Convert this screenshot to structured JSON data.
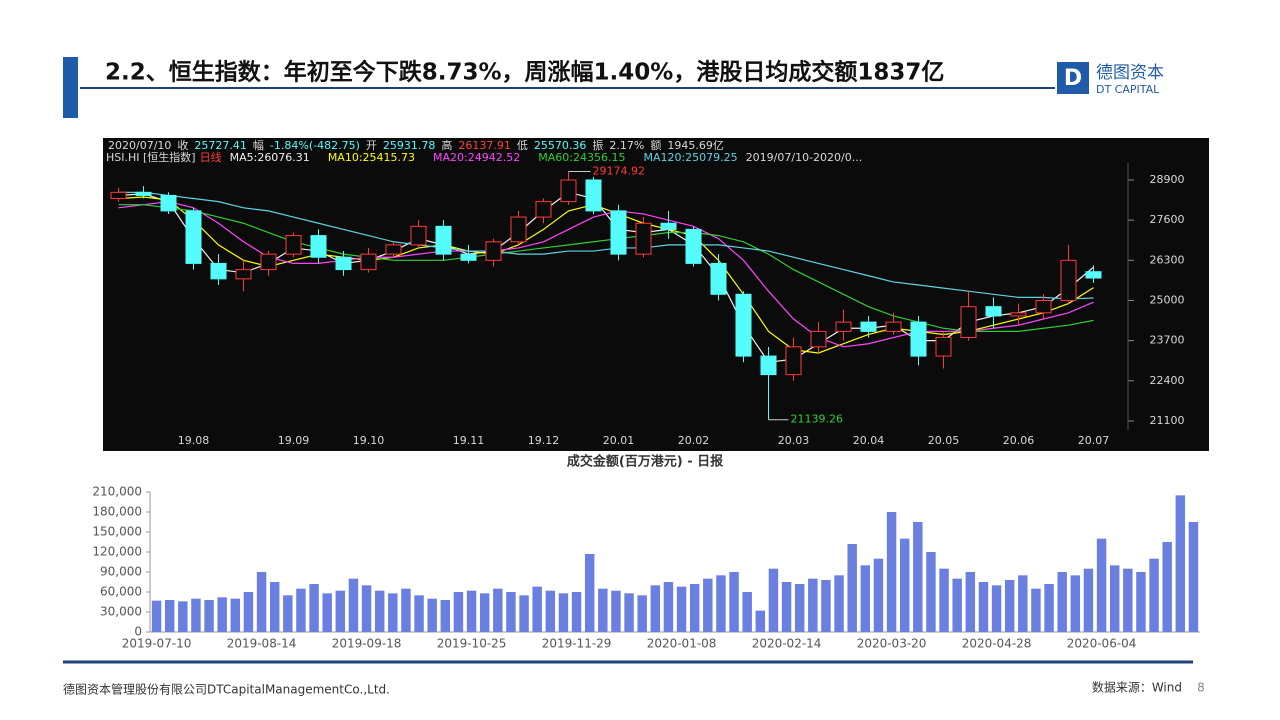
{
  "header": {
    "title": "2.2、恒生指数：年初至今下跌8.73%，周涨幅1.40%，港股日均成交额1837亿",
    "logo_cn": "德图资本",
    "logo_en": "DT CAPITAL"
  },
  "footer": {
    "company": "德图资本管理股份有限公司DTCapitalManagementCo.,Ltd.",
    "source": "数据来源：Wind",
    "page": 8
  },
  "chart_data": [
    {
      "type": "candlestick",
      "info": [
        {
          "text": "2020/07/10",
          "color": "#d8d8d8"
        },
        {
          "text": "收",
          "color": "#d8d8d8"
        },
        {
          "text": "25727.41",
          "color": "#54fcfc"
        },
        {
          "text": "幅",
          "color": "#d8d8d8"
        },
        {
          "text": "-1.84%(-482.75)",
          "color": "#54fcfc"
        },
        {
          "text": "开",
          "color": "#d8d8d8"
        },
        {
          "text": "25931.78",
          "color": "#54fcfc"
        },
        {
          "text": "高",
          "color": "#d8d8d8"
        },
        {
          "text": "26137.91",
          "color": "#ff4040"
        },
        {
          "text": "低",
          "color": "#d8d8d8"
        },
        {
          "text": "25570.36",
          "color": "#54fcfc"
        },
        {
          "text": "振",
          "color": "#d8d8d8"
        },
        {
          "text": "2.17%",
          "color": "#d8d8d8"
        },
        {
          "text": "额",
          "color": "#d8d8d8"
        },
        {
          "text": "1945.69亿",
          "color": "#d8d8d8"
        }
      ],
      "symbol": "HSI.HI [恒生指数]",
      "period": "日线",
      "range": "2019/07/10-2020/0...",
      "categories": [
        null,
        null,
        null,
        "19.08",
        null,
        null,
        null,
        "19.09",
        null,
        null,
        "19.10",
        null,
        null,
        null,
        "19.11",
        null,
        null,
        "19.12",
        null,
        null,
        "20.01",
        null,
        null,
        "20.02",
        null,
        null,
        null,
        "20.03",
        null,
        null,
        "20.04",
        null,
        null,
        "20.05",
        null,
        null,
        "20.06",
        null,
        null,
        "20.07"
      ],
      "open": [
        28300,
        28500,
        28400,
        27900,
        26200,
        25700,
        26000,
        26500,
        27100,
        26400,
        26000,
        26500,
        26800,
        27400,
        26500,
        26300,
        26900,
        27700,
        28200,
        28900,
        27900,
        26500,
        27500,
        27300,
        26200,
        25200,
        23200,
        22600,
        23500,
        24000,
        24300,
        24000,
        24300,
        23200,
        23800,
        24800,
        24500,
        24600,
        25000,
        25931.78
      ],
      "high": [
        28650,
        28700,
        28500,
        28000,
        26500,
        26300,
        26600,
        27200,
        27300,
        26600,
        26700,
        26900,
        27600,
        27600,
        26800,
        27000,
        27900,
        28300,
        29174.92,
        29000,
        28100,
        27700,
        27900,
        27400,
        26500,
        25300,
        23500,
        23800,
        24300,
        24700,
        24500,
        24600,
        24500,
        24000,
        25300,
        25100,
        24900,
        25200,
        26800,
        26137.91
      ],
      "low": [
        28200,
        28300,
        27800,
        26000,
        25500,
        25300,
        25800,
        26400,
        26200,
        25800,
        25900,
        26400,
        26700,
        26300,
        26200,
        26100,
        26800,
        27500,
        28100,
        27800,
        26300,
        26400,
        27000,
        26100,
        25000,
        23000,
        21139.26,
        22400,
        23300,
        23700,
        23800,
        23900,
        22900,
        22800,
        23700,
        24100,
        24200,
        24400,
        24900,
        25570.36
      ],
      "close": [
        28500,
        28400,
        27900,
        26200,
        25700,
        26000,
        26500,
        27100,
        26400,
        26000,
        26500,
        26800,
        27400,
        26500,
        26300,
        26900,
        27700,
        28200,
        28900,
        27900,
        26500,
        27500,
        27300,
        26200,
        25200,
        23200,
        22600,
        23500,
        24000,
        24300,
        24000,
        24300,
        23200,
        23800,
        24800,
        24500,
        24600,
        25000,
        26300,
        25727.41
      ],
      "up_color": "#ff3a3a",
      "down_color": "#54fcfc",
      "series": [
        {
          "name": "MA5:26076.31",
          "color": "#f0f0f0",
          "values": [
            28400,
            28450,
            28200,
            27000,
            26000,
            25900,
            26200,
            26700,
            26600,
            26200,
            26300,
            26600,
            27000,
            26800,
            26500,
            26600,
            27200,
            27900,
            28500,
            28300,
            27300,
            27200,
            27300,
            26800,
            25800,
            24200,
            23000,
            23100,
            23600,
            24100,
            24100,
            24200,
            23700,
            23700,
            24300,
            24500,
            24600,
            24800,
            25400,
            26076
          ]
        },
        {
          "name": "MA10:25415.73",
          "color": "#ffff00",
          "values": [
            28300,
            28350,
            28250,
            27600,
            26800,
            26300,
            26100,
            26300,
            26500,
            26400,
            26300,
            26400,
            26700,
            26800,
            26600,
            26500,
            26800,
            27300,
            27900,
            28100,
            27800,
            27500,
            27300,
            27100,
            26300,
            25200,
            24000,
            23400,
            23300,
            23600,
            23900,
            24100,
            24000,
            23900,
            24000,
            24200,
            24400,
            24600,
            24900,
            25416
          ]
        },
        {
          "name": "MA20:24942.52",
          "color": "#ff44ff",
          "values": [
            28000,
            28100,
            28200,
            28000,
            27500,
            26900,
            26400,
            26200,
            26200,
            26300,
            26400,
            26400,
            26500,
            26600,
            26600,
            26600,
            26700,
            26900,
            27300,
            27700,
            27900,
            27800,
            27600,
            27400,
            27000,
            26300,
            25300,
            24400,
            23800,
            23500,
            23600,
            23800,
            24000,
            24000,
            24000,
            24100,
            24200,
            24400,
            24600,
            24943
          ]
        },
        {
          "name": "MA60:24356.15",
          "color": "#33cc33",
          "values": [
            28100,
            28100,
            28000,
            27900,
            27700,
            27500,
            27200,
            26900,
            26700,
            26500,
            26400,
            26300,
            26300,
            26300,
            26400,
            26500,
            26600,
            26700,
            26800,
            26900,
            27000,
            27100,
            27200,
            27200,
            27100,
            26900,
            26500,
            26000,
            25600,
            25200,
            24800,
            24500,
            24300,
            24100,
            24000,
            24000,
            24000,
            24100,
            24200,
            24356
          ]
        },
        {
          "name": "MA120:25079.25",
          "color": "#5fd3e6",
          "values": [
            28500,
            28500,
            28400,
            28300,
            28200,
            28000,
            27900,
            27700,
            27500,
            27300,
            27100,
            26900,
            26800,
            26700,
            26600,
            26600,
            26500,
            26500,
            26600,
            26600,
            26700,
            26700,
            26800,
            26800,
            26800,
            26700,
            26600,
            26400,
            26200,
            26000,
            25800,
            25600,
            25500,
            25400,
            25300,
            25200,
            25100,
            25100,
            25050,
            25079
          ]
        }
      ],
      "ylim": [
        20160,
        29450
      ],
      "yticks": [
        21100,
        22400,
        23700,
        25000,
        26300,
        27600,
        28900
      ]
    },
    {
      "type": "bar",
      "title": "成交金额(百万港元) - 日报",
      "color": "#6b7fe0",
      "categories": [
        "2019-07-10",
        null,
        null,
        null,
        null,
        null,
        null,
        null,
        "2019-08-14",
        null,
        null,
        null,
        null,
        null,
        null,
        null,
        "2019-09-18",
        null,
        null,
        null,
        null,
        null,
        null,
        null,
        "2019-10-25",
        null,
        null,
        null,
        null,
        null,
        null,
        null,
        "2019-11-29",
        null,
        null,
        null,
        null,
        null,
        null,
        null,
        "2020-01-08",
        null,
        null,
        null,
        null,
        null,
        null,
        null,
        "2020-02-14",
        null,
        null,
        null,
        null,
        null,
        null,
        null,
        "2020-03-20",
        null,
        null,
        null,
        null,
        null,
        null,
        null,
        "2020-04-28",
        null,
        null,
        null,
        null,
        null,
        null,
        null,
        "2020-06-04",
        null,
        null,
        null,
        null,
        null,
        null,
        null
      ],
      "values": [
        47000,
        48000,
        46000,
        50000,
        48000,
        52000,
        50000,
        60000,
        90000,
        75000,
        55000,
        65000,
        72000,
        58000,
        62000,
        80000,
        70000,
        62000,
        58000,
        65000,
        55000,
        50000,
        48000,
        60000,
        62000,
        58000,
        65000,
        60000,
        55000,
        68000,
        62000,
        58000,
        60000,
        117000,
        65000,
        62000,
        58000,
        55000,
        70000,
        75000,
        68000,
        72000,
        80000,
        85000,
        90000,
        60000,
        32000,
        95000,
        75000,
        72000,
        80000,
        78000,
        85000,
        132000,
        100000,
        110000,
        180000,
        140000,
        165000,
        120000,
        95000,
        80000,
        90000,
        75000,
        70000,
        78000,
        85000,
        65000,
        72000,
        90000,
        85000,
        95000,
        140000,
        100000,
        95000,
        90000,
        110000,
        135000,
        205000,
        165000
      ],
      "ylim": [
        0,
        210000
      ],
      "yticks": [
        0,
        {
          "value": 30000,
          "label": "30,000"
        },
        {
          "value": 60000,
          "label": "60,000"
        },
        {
          "value": 90000,
          "label": "90,000"
        },
        {
          "value": 120000,
          "label": "120,000"
        },
        {
          "value": 150000,
          "label": "150,000"
        },
        {
          "value": 180000,
          "label": "180,000"
        },
        {
          "value": 210000,
          "label": "210,000"
        }
      ]
    }
  ]
}
